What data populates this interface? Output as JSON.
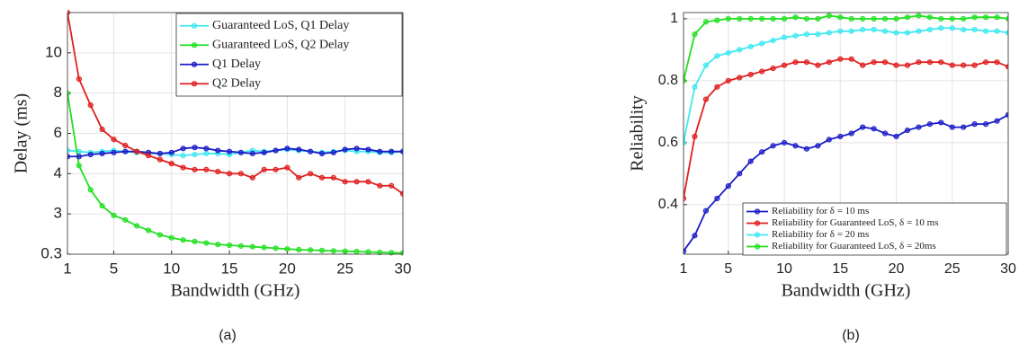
{
  "chart_data": [
    {
      "type": "line",
      "caption": "(a)",
      "xlabel": "Bandwidth (GHz)",
      "ylabel": "Delay (ms)",
      "x": [
        1,
        2,
        3,
        4,
        5,
        6,
        7,
        8,
        9,
        10,
        11,
        12,
        13,
        14,
        15,
        16,
        17,
        18,
        19,
        20,
        21,
        22,
        23,
        24,
        25,
        26,
        27,
        28,
        29,
        30
      ],
      "xlim": [
        1,
        30
      ],
      "xticks": [
        1,
        5,
        10,
        15,
        20,
        25,
        30
      ],
      "ylim": [
        0.3,
        12
      ],
      "yticks": [
        0.3,
        3,
        4,
        6,
        8,
        10
      ],
      "grid": true,
      "legend": "upper right",
      "series": [
        {
          "name": "Guaranteed LoS, Q1 Delay",
          "color": "#40e8f0",
          "values": [
            5.15,
            5.1,
            5.05,
            5.1,
            5.15,
            5.1,
            5.05,
            5.0,
            5.0,
            4.95,
            4.9,
            4.95,
            5.0,
            5.0,
            4.95,
            5.05,
            5.15,
            5.1,
            5.15,
            5.2,
            5.15,
            5.1,
            5.05,
            5.1,
            5.15,
            5.1,
            5.1,
            5.05,
            5.05,
            5.1
          ]
        },
        {
          "name": "Guaranteed LoS, Q2 Delay",
          "color": "#22e022",
          "values": [
            8,
            4.4,
            3.6,
            3.2,
            2.9,
            2.6,
            2.2,
            1.9,
            1.6,
            1.4,
            1.25,
            1.15,
            1.05,
            0.95,
            0.9,
            0.85,
            0.8,
            0.75,
            0.7,
            0.65,
            0.6,
            0.58,
            0.55,
            0.52,
            0.5,
            0.48,
            0.45,
            0.42,
            0.4,
            0.38
          ]
        },
        {
          "name": "Q1 Delay",
          "color": "#1c1cc8",
          "values": [
            4.85,
            4.85,
            4.95,
            5.0,
            5.05,
            5.1,
            5.1,
            5.05,
            5.0,
            5.05,
            5.25,
            5.3,
            5.25,
            5.15,
            5.1,
            5.05,
            5.0,
            5.05,
            5.15,
            5.25,
            5.2,
            5.1,
            5.0,
            5.05,
            5.2,
            5.25,
            5.2,
            5.1,
            5.1,
            5.1
          ]
        },
        {
          "name": "Q2 Delay",
          "color": "#e02020",
          "values": [
            12,
            8.7,
            7.4,
            6.2,
            5.7,
            5.4,
            5.1,
            4.9,
            4.7,
            4.5,
            4.3,
            4.2,
            4.2,
            4.1,
            4.0,
            4.0,
            3.9,
            4.2,
            4.2,
            4.3,
            3.9,
            4.0,
            3.9,
            3.9,
            3.8,
            3.8,
            3.8,
            3.7,
            3.7,
            3.5
          ]
        }
      ]
    },
    {
      "type": "line",
      "caption": "(b)",
      "xlabel": "Bandwidth (GHz)",
      "ylabel": "Reliability",
      "x": [
        1,
        2,
        3,
        4,
        5,
        6,
        7,
        8,
        9,
        10,
        11,
        12,
        13,
        14,
        15,
        16,
        17,
        18,
        19,
        20,
        21,
        22,
        23,
        24,
        25,
        26,
        27,
        28,
        29,
        30
      ],
      "xlim": [
        1,
        30
      ],
      "xticks": [
        1,
        5,
        10,
        15,
        20,
        25,
        30
      ],
      "ylim": [
        0.24,
        1.02
      ],
      "yticks": [
        0.4,
        0.6,
        0.8,
        1
      ],
      "grid": true,
      "legend": "lower right",
      "series": [
        {
          "name": "Reliability for δ = 10 ms",
          "color": "#1c1cc8",
          "values": [
            0.25,
            0.3,
            0.38,
            0.42,
            0.46,
            0.5,
            0.54,
            0.57,
            0.59,
            0.6,
            0.59,
            0.58,
            0.59,
            0.61,
            0.62,
            0.63,
            0.65,
            0.645,
            0.63,
            0.62,
            0.64,
            0.65,
            0.66,
            0.665,
            0.65,
            0.65,
            0.66,
            0.66,
            0.67,
            0.69
          ]
        },
        {
          "name": "Reliability for Guaranteed LoS, δ = 10 ms",
          "color": "#e02020",
          "values": [
            0.42,
            0.62,
            0.74,
            0.78,
            0.8,
            0.81,
            0.82,
            0.83,
            0.84,
            0.85,
            0.86,
            0.86,
            0.85,
            0.86,
            0.87,
            0.87,
            0.85,
            0.86,
            0.86,
            0.85,
            0.85,
            0.86,
            0.86,
            0.86,
            0.85,
            0.85,
            0.85,
            0.86,
            0.86,
            0.845
          ]
        },
        {
          "name": "Reliability for δ = 20 ms",
          "color": "#40e8f0",
          "values": [
            0.6,
            0.78,
            0.85,
            0.88,
            0.89,
            0.9,
            0.91,
            0.92,
            0.93,
            0.94,
            0.945,
            0.95,
            0.95,
            0.955,
            0.96,
            0.96,
            0.965,
            0.965,
            0.96,
            0.955,
            0.955,
            0.96,
            0.965,
            0.97,
            0.97,
            0.965,
            0.965,
            0.96,
            0.96,
            0.955
          ]
        },
        {
          "name": "Reliability for Guaranteed LoS, δ = 20ms",
          "color": "#22e022",
          "values": [
            0.8,
            0.95,
            0.99,
            0.995,
            1,
            1,
            1,
            1,
            1,
            1,
            1.005,
            1,
            1,
            1.01,
            1.005,
            1,
            1,
            1,
            1,
            1,
            1.005,
            1.01,
            1.005,
            1,
            1,
            1,
            1.005,
            1.005,
            1.005,
            1.0
          ]
        }
      ]
    }
  ]
}
